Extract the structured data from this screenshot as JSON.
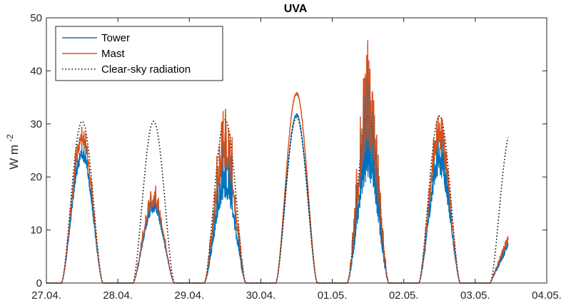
{
  "chart_data": {
    "type": "line",
    "title": "UVA",
    "ylabel": "W m",
    "ylabel_superscript": "-2",
    "xlabel": "",
    "ylim": [
      0,
      50
    ],
    "yticks": [
      0,
      10,
      20,
      30,
      40,
      50
    ],
    "xlim": [
      "27.04.",
      "04.05."
    ],
    "xticks": [
      "27.04.",
      "28.04.",
      "29.04.",
      "30.04.",
      "01.05.",
      "02.05.",
      "03.05.",
      "04.05."
    ],
    "grid": false,
    "legend_position": "top-left",
    "colors": {
      "tower": "#0072BD",
      "mast": "#D95319",
      "clear_sky": "#000000"
    },
    "series": [
      {
        "name": "Tower",
        "color": "#0072BD",
        "daily_peak": [
          25,
          15,
          19,
          32,
          24,
          24,
          8
        ],
        "daily_max_spike": [
          28,
          17,
          30,
          32,
          42,
          30,
          9
        ]
      },
      {
        "name": "Mast",
        "color": "#D95319",
        "daily_peak": [
          28,
          16,
          25,
          36,
          30,
          29,
          10
        ],
        "daily_max_spike": [
          31,
          19,
          35,
          36,
          46,
          34,
          10
        ]
      },
      {
        "name": "Clear-sky radiation",
        "color": "#000000",
        "style": "dotted",
        "daily_peak": [
          30.5,
          30.5,
          30.8,
          31.2,
          31.5,
          31.5,
          28.5
        ]
      }
    ],
    "day_labels": [
      "27.04.",
      "28.04.",
      "29.04.",
      "30.04.",
      "01.05.",
      "02.05.",
      "03.05."
    ],
    "data_end": "03.05. 11:00"
  }
}
